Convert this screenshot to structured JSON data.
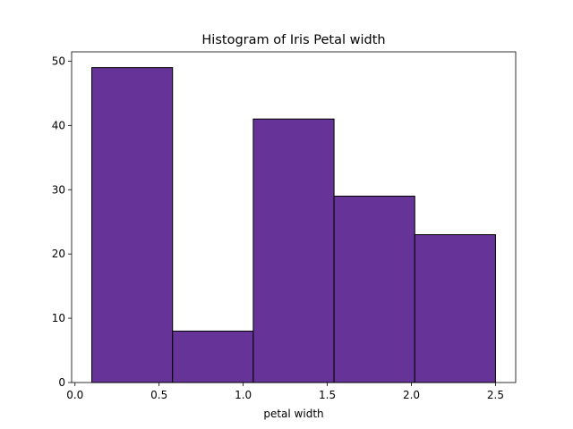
{
  "chart_data": {
    "type": "bar",
    "title": "Histogram of Iris Petal width",
    "xlabel": "petal width",
    "ylabel": "",
    "bins": [
      {
        "x0": 0.1,
        "x1": 0.58,
        "count": 49
      },
      {
        "x0": 0.58,
        "x1": 1.06,
        "count": 8
      },
      {
        "x0": 1.06,
        "x1": 1.54,
        "count": 41
      },
      {
        "x0": 1.54,
        "x1": 2.02,
        "count": 29
      },
      {
        "x0": 2.02,
        "x1": 2.5,
        "count": 23
      }
    ],
    "xlim": [
      -0.02,
      2.62
    ],
    "ylim": [
      0,
      51.45
    ],
    "xticks": [
      0.0,
      0.5,
      1.0,
      1.5,
      2.0,
      2.5
    ],
    "xtick_labels": [
      "0.0",
      "0.5",
      "1.0",
      "1.5",
      "2.0",
      "2.5"
    ],
    "yticks": [
      0,
      10,
      20,
      30,
      40,
      50
    ],
    "ytick_labels": [
      "0",
      "10",
      "20",
      "30",
      "40",
      "50"
    ],
    "bar_color": "#663399",
    "edge_color": "#000000",
    "grid": false,
    "legend": "none"
  }
}
